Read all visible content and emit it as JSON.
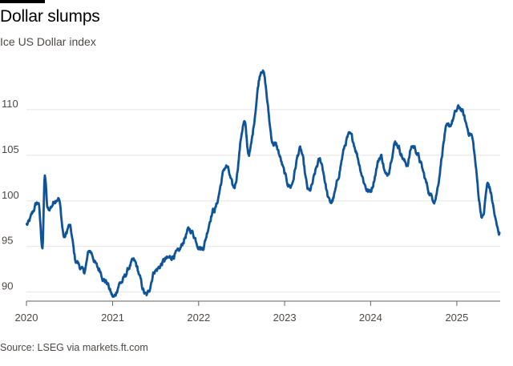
{
  "title": "Dollar slumps",
  "subtitle": "Ice US Dollar index",
  "source": "Source: LSEG via markets.ft.com",
  "colors": {
    "line": "#0f5499",
    "grid": "#e7e4e0",
    "axis": "#66605c"
  },
  "chart_data": {
    "type": "line",
    "title": "Dollar slumps",
    "subtitle": "Ice US Dollar index",
    "xlabel": "",
    "ylabel": "",
    "xlim": [
      "2020-01-01",
      "2025-07-04"
    ],
    "ylim": [
      89,
      115
    ],
    "y_ticks": [
      90,
      95,
      100,
      105,
      110
    ],
    "x_ticks": [
      "2020",
      "2021",
      "2022",
      "2023",
      "2024",
      "2025"
    ],
    "grid": "horizontal",
    "series": [
      {
        "name": "",
        "points": [
          [
            "2020-01-02",
            97.4
          ],
          [
            "2020-02-20",
            99.8
          ],
          [
            "2020-03-09",
            95.0
          ],
          [
            "2020-03-19",
            102.8
          ],
          [
            "2020-03-31",
            99.0
          ],
          [
            "2020-05-15",
            100.4
          ],
          [
            "2020-06-10",
            96.0
          ],
          [
            "2020-07-01",
            97.2
          ],
          [
            "2020-07-31",
            93.3
          ],
          [
            "2020-09-01",
            92.2
          ],
          [
            "2020-09-25",
            94.5
          ],
          [
            "2020-11-04",
            92.5
          ],
          [
            "2020-12-01",
            91.2
          ],
          [
            "2021-01-06",
            89.4
          ],
          [
            "2021-02-01",
            91.0
          ],
          [
            "2021-03-31",
            93.3
          ],
          [
            "2021-05-25",
            89.6
          ],
          [
            "2021-06-30",
            92.4
          ],
          [
            "2021-08-20",
            93.6
          ],
          [
            "2021-09-30",
            94.2
          ],
          [
            "2021-11-24",
            96.8
          ],
          [
            "2022-01-14",
            94.8
          ],
          [
            "2022-03-07",
            99.0
          ],
          [
            "2022-04-28",
            103.8
          ],
          [
            "2022-05-30",
            101.4
          ],
          [
            "2022-07-14",
            108.6
          ],
          [
            "2022-08-01",
            105.2
          ],
          [
            "2022-09-27",
            114.5
          ],
          [
            "2022-11-15",
            106.3
          ],
          [
            "2023-01-26",
            101.6
          ],
          [
            "2023-03-08",
            105.6
          ],
          [
            "2023-04-14",
            101.0
          ],
          [
            "2023-05-31",
            104.4
          ],
          [
            "2023-07-14",
            99.8
          ],
          [
            "2023-10-03",
            107.1
          ],
          [
            "2023-12-27",
            101.0
          ],
          [
            "2024-02-14",
            104.9
          ],
          [
            "2024-03-08",
            102.7
          ],
          [
            "2024-04-16",
            106.4
          ],
          [
            "2024-06-03",
            104.0
          ],
          [
            "2024-06-26",
            106.0
          ],
          [
            "2024-09-27",
            100.2
          ],
          [
            "2024-11-22",
            108.0
          ],
          [
            "2025-01-13",
            110.2
          ],
          [
            "2025-02-28",
            107.4
          ],
          [
            "2025-04-21",
            98.2
          ],
          [
            "2025-05-12",
            101.8
          ],
          [
            "2025-07-01",
            96.5
          ]
        ]
      }
    ]
  }
}
